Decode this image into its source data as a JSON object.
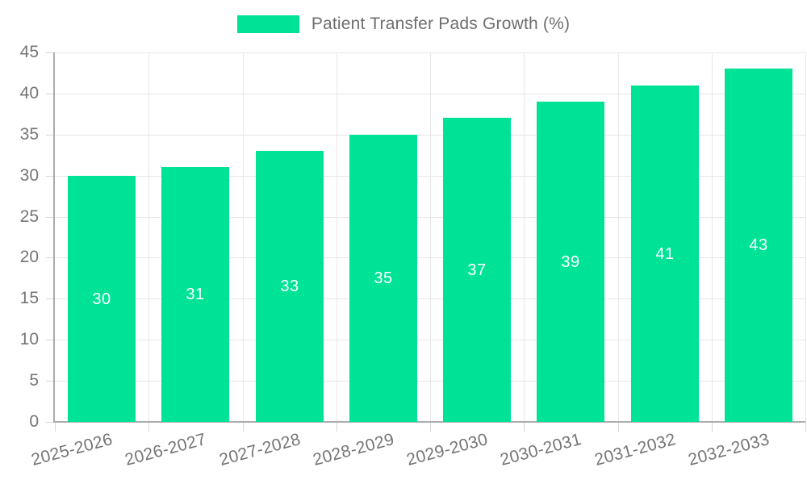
{
  "legend": {
    "label": "Patient Transfer Pads Growth (%)"
  },
  "colors": {
    "bar": "#00E396",
    "value_label": "#FFFFFF",
    "grid_line": "#E7E7E7",
    "tick_mark": "#D6D6D6",
    "axis_line": "#ACACAC",
    "axis_text": "#757575",
    "legend_text": "#6E6E6E",
    "background": "#FFFFFF"
  },
  "chart_data": {
    "type": "bar",
    "title": "Patient Transfer Pads Growth (%)",
    "series_name": "Patient Transfer Pads Growth (%)",
    "categories": [
      "2025-2026",
      "2026-2027",
      "2027-2028",
      "2028-2029",
      "2029-2030",
      "2030-2031",
      "2031-2032",
      "2032-2033"
    ],
    "values": [
      30,
      31,
      33,
      35,
      37,
      39,
      41,
      43
    ],
    "value_labels_shown": true,
    "xlabel": "",
    "ylabel": "",
    "ylim": [
      0,
      45
    ],
    "ytick_step": 5,
    "yticks": [
      0,
      5,
      10,
      15,
      20,
      25,
      30,
      35,
      40,
      45
    ],
    "grid": true,
    "legend_position": "top",
    "x_label_rotation_deg": -15
  }
}
